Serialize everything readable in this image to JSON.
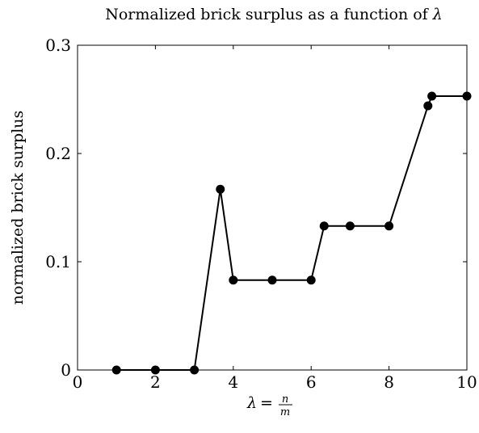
{
  "chart_data": {
    "type": "line",
    "title": "Normalized brick surplus as a function of λ",
    "xlabel": {
      "lhs": "λ",
      "equals": "=",
      "numerator": "n",
      "denominator": "m"
    },
    "ylabel": "normalized brick surplus",
    "xlim": [
      0,
      10
    ],
    "ylim": [
      0,
      0.3
    ],
    "xticks": [
      {
        "value": 0,
        "label": "0"
      },
      {
        "value": 2,
        "label": "2"
      },
      {
        "value": 4,
        "label": "4"
      },
      {
        "value": 6,
        "label": "6"
      },
      {
        "value": 8,
        "label": "8"
      },
      {
        "value": 10,
        "label": "10"
      }
    ],
    "yticks": [
      {
        "value": 0,
        "label": "0"
      },
      {
        "value": 0.1,
        "label": "0.1"
      },
      {
        "value": 0.2,
        "label": "0.2"
      },
      {
        "value": 0.3,
        "label": "0.3"
      }
    ],
    "grid": false,
    "series": [
      {
        "color": "#000000",
        "marker": "filled-circle",
        "x": [
          1,
          2,
          3,
          3.667,
          4,
          5,
          6,
          6.333,
          7,
          8,
          9,
          9.1,
          10
        ],
        "y": [
          0,
          0,
          0,
          0.167,
          0.083,
          0.083,
          0.083,
          0.133,
          0.133,
          0.133,
          0.244,
          0.253,
          0.253
        ]
      }
    ]
  }
}
